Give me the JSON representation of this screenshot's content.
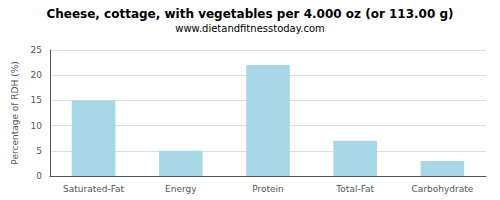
{
  "chart_data": {
    "type": "bar",
    "title": "Cheese, cottage, with vegetables per 4.000 oz (or 113.00 g)",
    "subtitle": "www.dietandfitnesstoday.com",
    "categories": [
      "Saturated-Fat",
      "Energy",
      "Protein",
      "Total-Fat",
      "Carbohydrate"
    ],
    "values": [
      15,
      5,
      22,
      7,
      3
    ],
    "color": "#a8d8e8",
    "ylabel": "Percentage of RDH (%)",
    "ylim": [
      0,
      25
    ],
    "yticks": [
      0,
      5,
      10,
      15,
      20,
      25
    ],
    "grid": true
  }
}
